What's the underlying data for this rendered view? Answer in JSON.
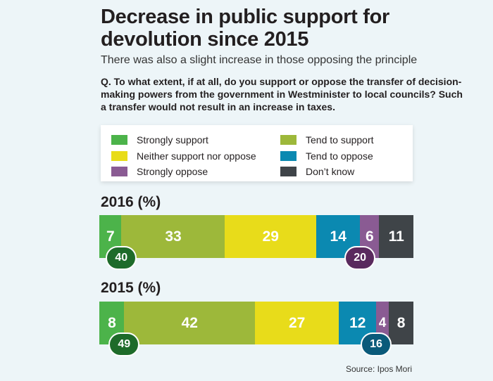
{
  "title": "Decrease in public support for devolution since 2015",
  "subtitle": "There was also a slight increase in those opposing the principle",
  "question": "Q. To what extent, if at all, do you support or oppose the transfer of decision-making powers from the government in Westminister to local councils? Such a transfer would not result in an increase in taxes.",
  "source": "Source: Ipos Mori",
  "legend": [
    {
      "label": "Strongly support",
      "color": "#4cb34a"
    },
    {
      "label": "Tend to support",
      "color": "#9db83a"
    },
    {
      "label": "Neither support nor oppose",
      "color": "#e8dc1a"
    },
    {
      "label": "Tend to oppose",
      "color": "#0b89b1"
    },
    {
      "label": "Strongly oppose",
      "color": "#8a5b93"
    },
    {
      "label": "Don’t know",
      "color": "#3f4448"
    }
  ],
  "chart_data": [
    {
      "type": "bar",
      "title": "2016 (%)",
      "categories": [
        "Strongly support",
        "Tend to support",
        "Neither support nor oppose",
        "Tend to oppose",
        "Strongly oppose",
        "Don’t know"
      ],
      "values": [
        7,
        33,
        29,
        14,
        6,
        11
      ],
      "support_total": 40,
      "oppose_total": 20,
      "support_color": "#1e6b2a",
      "oppose_color": "#5a2a5e"
    },
    {
      "type": "bar",
      "title": "2015 (%)",
      "categories": [
        "Strongly support",
        "Tend to support",
        "Neither support nor oppose",
        "Tend to oppose",
        "Strongly oppose",
        "Don’t know"
      ],
      "values": [
        8,
        42,
        27,
        12,
        4,
        8
      ],
      "support_total": 49,
      "oppose_total": 16,
      "support_color": "#1e6b2a",
      "oppose_color": "#0b5a7a"
    }
  ]
}
